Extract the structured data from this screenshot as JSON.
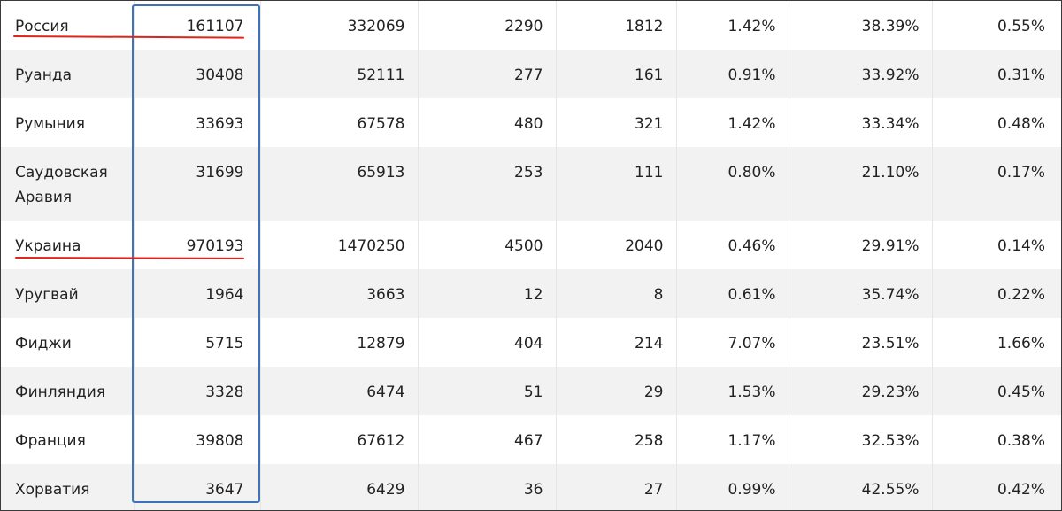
{
  "table": {
    "rows": [
      {
        "country": "Россия",
        "c1": "161107",
        "c2": "332069",
        "c3": "2290",
        "c4": "1812",
        "c5": "1.42%",
        "c6": "38.39%",
        "c7": "0.55%"
      },
      {
        "country": "Руанда",
        "c1": "30408",
        "c2": "52111",
        "c3": "277",
        "c4": "161",
        "c5": "0.91%",
        "c6": "33.92%",
        "c7": "0.31%"
      },
      {
        "country": "Румыния",
        "c1": "33693",
        "c2": "67578",
        "c3": "480",
        "c4": "321",
        "c5": "1.42%",
        "c6": "33.34%",
        "c7": "0.48%"
      },
      {
        "country_line1": "Саудовская",
        "country_line2": "Аравия",
        "c1": "31699",
        "c2": "65913",
        "c3": "253",
        "c4": "111",
        "c5": "0.80%",
        "c6": "21.10%",
        "c7": "0.17%"
      },
      {
        "country": "Украина",
        "c1": "970193",
        "c2": "1470250",
        "c3": "4500",
        "c4": "2040",
        "c5": "0.46%",
        "c6": "29.91%",
        "c7": "0.14%"
      },
      {
        "country": "Уругвай",
        "c1": "1964",
        "c2": "3663",
        "c3": "12",
        "c4": "8",
        "c5": "0.61%",
        "c6": "35.74%",
        "c7": "0.22%"
      },
      {
        "country": "Фиджи",
        "c1": "5715",
        "c2": "12879",
        "c3": "404",
        "c4": "214",
        "c5": "7.07%",
        "c6": "23.51%",
        "c7": "1.66%"
      },
      {
        "country": "Финляндия",
        "c1": "3328",
        "c2": "6474",
        "c3": "51",
        "c4": "29",
        "c5": "1.53%",
        "c6": "29.23%",
        "c7": "0.45%"
      },
      {
        "country": "Франция",
        "c1": "39808",
        "c2": "67612",
        "c3": "467",
        "c4": "258",
        "c5": "1.17%",
        "c6": "32.53%",
        "c7": "0.38%"
      },
      {
        "country": "Хорватия",
        "c1": "3647",
        "c2": "6429",
        "c3": "36",
        "c4": "27",
        "c5": "0.99%",
        "c6": "42.55%",
        "c7": "0.42%"
      }
    ]
  },
  "annotations": {
    "box_color": "#3d73b8",
    "underline_color": "#e0241b"
  }
}
